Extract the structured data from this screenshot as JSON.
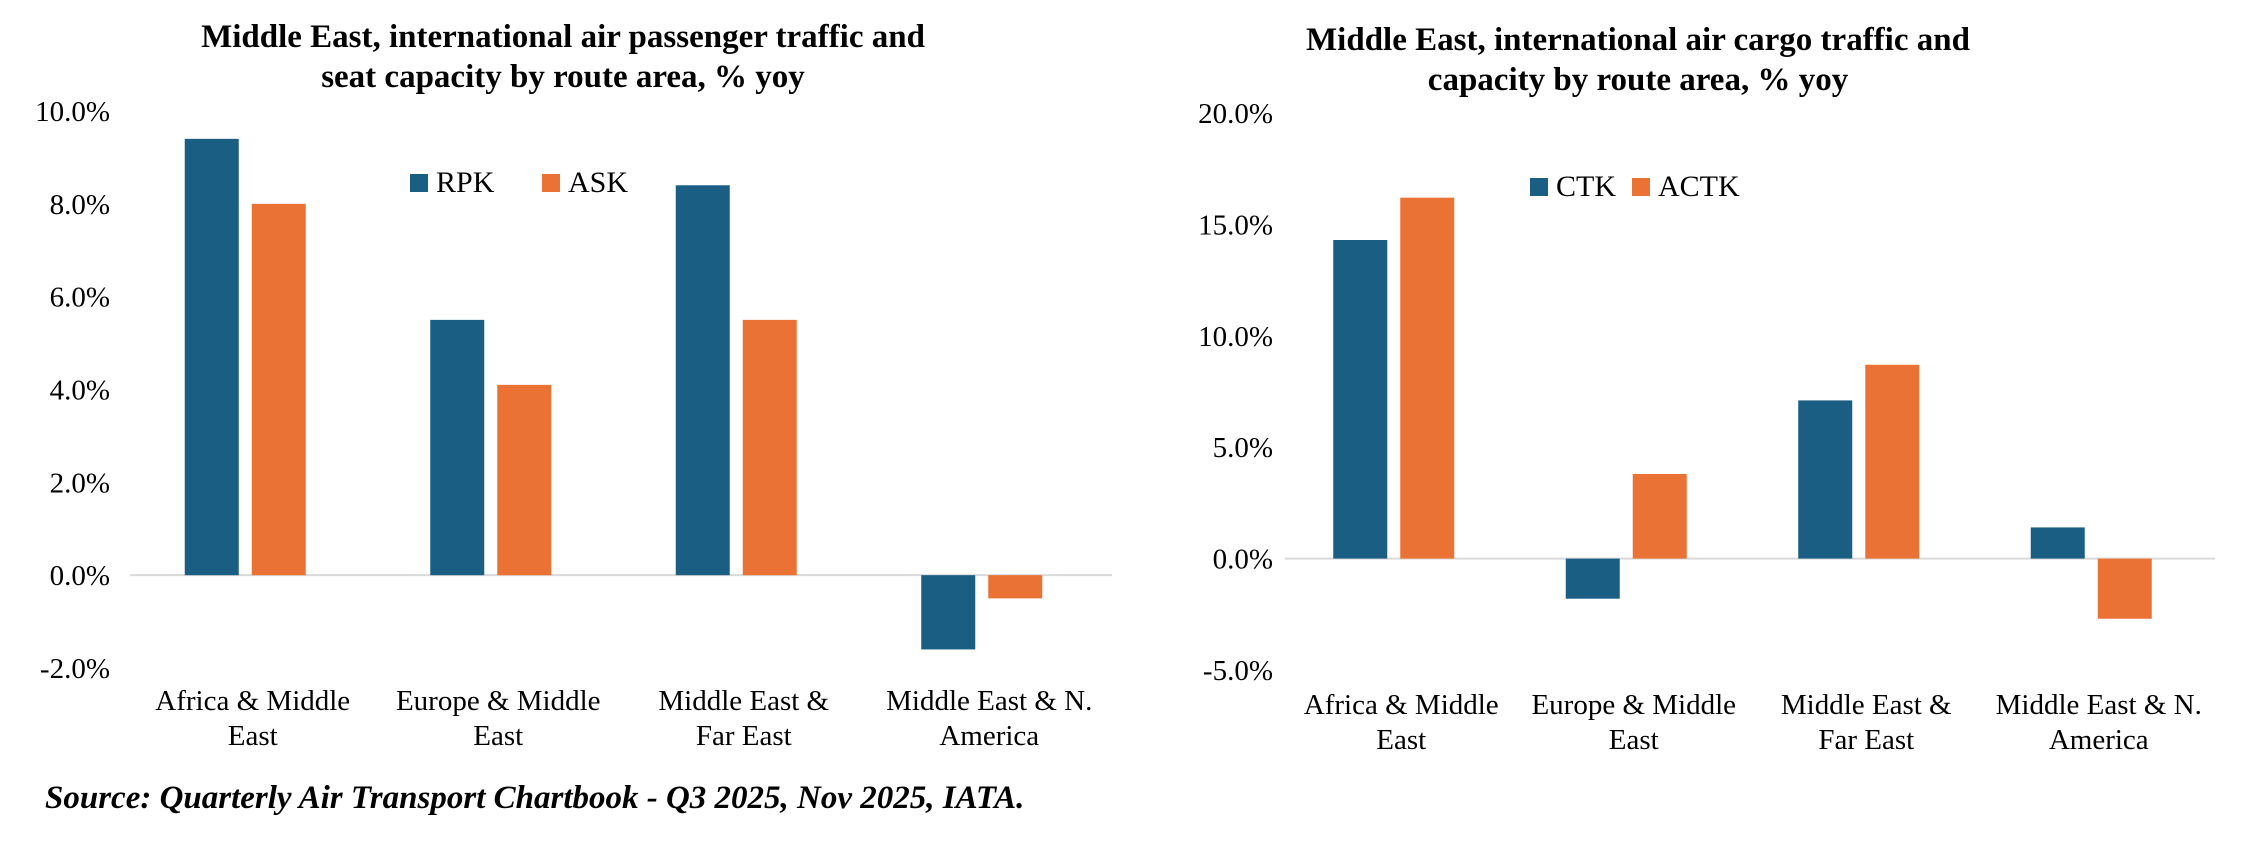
{
  "colors": {
    "primary": "#1a5e83",
    "secondary": "#ea7235",
    "axis": "#d9d9d9"
  },
  "chart_data": [
    {
      "type": "bar",
      "title_lines": [
        "Middle East, international air passenger traffic and",
        "seat capacity by route area, % yoy"
      ],
      "categories": [
        [
          "Africa & Middle",
          "East"
        ],
        [
          "Europe & Middle",
          "East"
        ],
        [
          "Middle East &",
          "Far East"
        ],
        [
          "Middle East & N.",
          "America"
        ]
      ],
      "series": [
        {
          "name": "RPK",
          "values": [
            9.4,
            5.5,
            8.4,
            -1.6
          ]
        },
        {
          "name": "ASK",
          "values": [
            8.0,
            4.1,
            5.5,
            -0.5
          ]
        }
      ],
      "ylim": [
        -2,
        10
      ],
      "yticks": [
        -2,
        0,
        2,
        4,
        6,
        8,
        10
      ],
      "ytick_labels": [
        "-2.0%",
        "0.0%",
        "2.0%",
        "4.0%",
        "6.0%",
        "8.0%",
        "10.0%"
      ],
      "legend": "top-center",
      "grid": false
    },
    {
      "type": "bar",
      "title_lines": [
        "Middle East, international air cargo traffic and",
        "capacity by route area, % yoy"
      ],
      "categories": [
        [
          "Africa & Middle",
          "East"
        ],
        [
          "Europe & Middle",
          "East"
        ],
        [
          "Middle East &",
          "Far East"
        ],
        [
          "Middle East & N.",
          "America"
        ]
      ],
      "series": [
        {
          "name": "CTK",
          "values": [
            14.3,
            -1.8,
            7.1,
            1.4
          ]
        },
        {
          "name": "ACTK",
          "values": [
            16.2,
            3.8,
            8.7,
            -2.7
          ]
        }
      ],
      "ylim": [
        -5,
        20
      ],
      "yticks": [
        -5,
        0,
        5,
        10,
        15,
        20
      ],
      "ytick_labels": [
        "-5.0%",
        "0.0%",
        "5.0%",
        "10.0%",
        "15.0%",
        "20.0%"
      ],
      "legend": "top-center",
      "grid": false
    }
  ],
  "source": "Source: Quarterly Air Transport Chartbook - Q3 2025, Nov 2025, IATA."
}
